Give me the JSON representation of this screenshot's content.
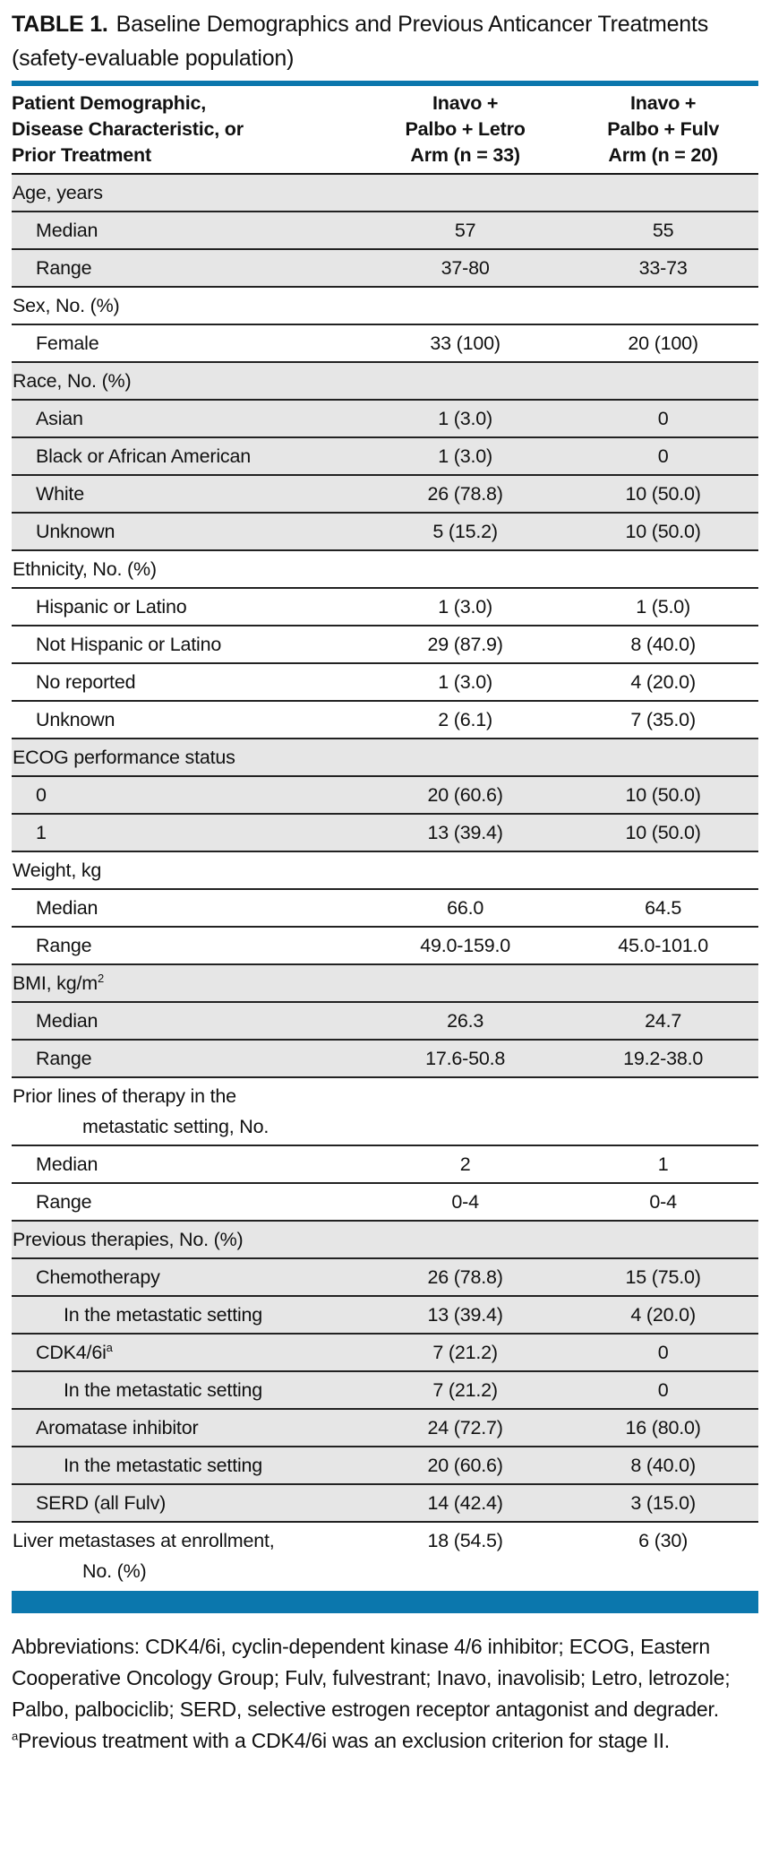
{
  "colors": {
    "accent_blue": "#0b77ad",
    "row_shade": "#e6e6e6"
  },
  "title": {
    "label": "TABLE 1.",
    "text": "Baseline Demographics and Previous Anticancer Treatments",
    "line2": "(safety-evaluable population)"
  },
  "table": {
    "header": {
      "col1_lines": [
        "Patient Demographic,",
        "Disease Characteristic, or",
        "Prior Treatment"
      ],
      "col2_lines": [
        "Inavo +",
        "Palbo + Letro",
        "Arm (n = 33)"
      ],
      "col3_lines": [
        "Inavo +",
        "Palbo + Fulv",
        "Arm (n = 20)"
      ]
    },
    "rows": [
      {
        "label": "Age, years",
        "indent": 0,
        "col2": "",
        "col3": "",
        "shaded": true
      },
      {
        "label": "Median",
        "indent": 1,
        "col2": "57",
        "col3": "55",
        "shaded": true
      },
      {
        "label": "Range",
        "indent": 1,
        "col2": "37-80",
        "col3": "33-73",
        "shaded": true
      },
      {
        "label": "Sex, No. (%)",
        "indent": 0,
        "col2": "",
        "col3": "",
        "shaded": false
      },
      {
        "label": "Female",
        "indent": 1,
        "col2": "33 (100)",
        "col3": "20 (100)",
        "shaded": false
      },
      {
        "label": "Race, No. (%)",
        "indent": 0,
        "col2": "",
        "col3": "",
        "shaded": true
      },
      {
        "label": "Asian",
        "indent": 1,
        "col2": "1 (3.0)",
        "col3": "0",
        "shaded": true
      },
      {
        "label": "Black or African American",
        "indent": 1,
        "col2": "1 (3.0)",
        "col3": "0",
        "shaded": true
      },
      {
        "label": "White",
        "indent": 1,
        "col2": "26 (78.8)",
        "col3": "10 (50.0)",
        "shaded": true
      },
      {
        "label": "Unknown",
        "indent": 1,
        "col2": "5 (15.2)",
        "col3": "10 (50.0)",
        "shaded": true
      },
      {
        "label": "Ethnicity, No. (%)",
        "indent": 0,
        "col2": "",
        "col3": "",
        "shaded": false
      },
      {
        "label": "Hispanic or Latino",
        "indent": 1,
        "col2": "1 (3.0)",
        "col3": "1 (5.0)",
        "shaded": false
      },
      {
        "label": "Not Hispanic or Latino",
        "indent": 1,
        "col2": "29 (87.9)",
        "col3": "8 (40.0)",
        "shaded": false
      },
      {
        "label": "No reported",
        "indent": 1,
        "col2": "1 (3.0)",
        "col3": "4 (20.0)",
        "shaded": false
      },
      {
        "label": "Unknown",
        "indent": 1,
        "col2": "2 (6.1)",
        "col3": "7 (35.0)",
        "shaded": false
      },
      {
        "label": "ECOG performance status",
        "indent": 0,
        "col2": "",
        "col3": "",
        "shaded": true
      },
      {
        "label": "0",
        "indent": 1,
        "col2": "20 (60.6)",
        "col3": "10 (50.0)",
        "shaded": true
      },
      {
        "label": "1",
        "indent": 1,
        "col2": "13 (39.4)",
        "col3": "10 (50.0)",
        "shaded": true
      },
      {
        "label": "Weight, kg",
        "indent": 0,
        "col2": "",
        "col3": "",
        "shaded": false
      },
      {
        "label": "Median",
        "indent": 1,
        "col2": "66.0",
        "col3": "64.5",
        "shaded": false
      },
      {
        "label": "Range",
        "indent": 1,
        "col2": "49.0-159.0",
        "col3": "45.0-101.0",
        "shaded": false
      },
      {
        "label": "BMI, kg/m",
        "sup": "2",
        "indent": 0,
        "col2": "",
        "col3": "",
        "shaded": true
      },
      {
        "label": "Median",
        "indent": 1,
        "col2": "26.3",
        "col3": "24.7",
        "shaded": true
      },
      {
        "label": "Range",
        "indent": 1,
        "col2": "17.6-50.8",
        "col3": "19.2-38.0",
        "shaded": true
      },
      {
        "label": "Prior lines of therapy in the",
        "label2": "metastatic setting, No.",
        "indent": 0,
        "col2": "",
        "col3": "",
        "shaded": false
      },
      {
        "label": "Median",
        "indent": 1,
        "col2": "2",
        "col3": "1",
        "shaded": false
      },
      {
        "label": "Range",
        "indent": 1,
        "col2": "0-4",
        "col3": "0-4",
        "shaded": false
      },
      {
        "label": "Previous therapies, No. (%)",
        "indent": 0,
        "col2": "",
        "col3": "",
        "shaded": true
      },
      {
        "label": "Chemotherapy",
        "indent": 1,
        "col2": "26 (78.8)",
        "col3": "15 (75.0)",
        "shaded": true
      },
      {
        "label": "In the metastatic setting",
        "indent": 2,
        "col2": "13 (39.4)",
        "col3": "4 (20.0)",
        "shaded": true
      },
      {
        "label": "CDK4/6i",
        "sup": "a",
        "indent": 1,
        "col2": "7 (21.2)",
        "col3": "0",
        "shaded": true
      },
      {
        "label": "In the metastatic setting",
        "indent": 2,
        "col2": "7 (21.2)",
        "col3": "0",
        "shaded": true
      },
      {
        "label": "Aromatase inhibitor",
        "indent": 1,
        "col2": "24 (72.7)",
        "col3": "16 (80.0)",
        "shaded": true
      },
      {
        "label": "In the metastatic setting",
        "indent": 2,
        "col2": "20 (60.6)",
        "col3": "8 (40.0)",
        "shaded": true
      },
      {
        "label": "SERD (all Fulv)",
        "indent": 1,
        "col2": "14 (42.4)",
        "col3": "3 (15.0)",
        "shaded": true
      },
      {
        "label": "Liver metastases at enrollment,",
        "label2": "No. (%)",
        "indent": 0,
        "col2": "18 (54.5)",
        "col3": "6 (30)",
        "shaded": false
      }
    ]
  },
  "footnotes": {
    "abbreviations": "Abbreviations: CDK4/6i, cyclin-dependent kinase 4/6 inhibitor; ECOG, Eastern Cooperative Oncology Group; Fulv, fulvestrant; Inavo, inavolisib; Letro, letrozole; Palbo, palbociclib; SERD, selective estrogen receptor antagonist and degrader.",
    "a_sup": "a",
    "a_text": "Previous treatment with a CDK4/6i was an exclusion criterion for stage II."
  }
}
